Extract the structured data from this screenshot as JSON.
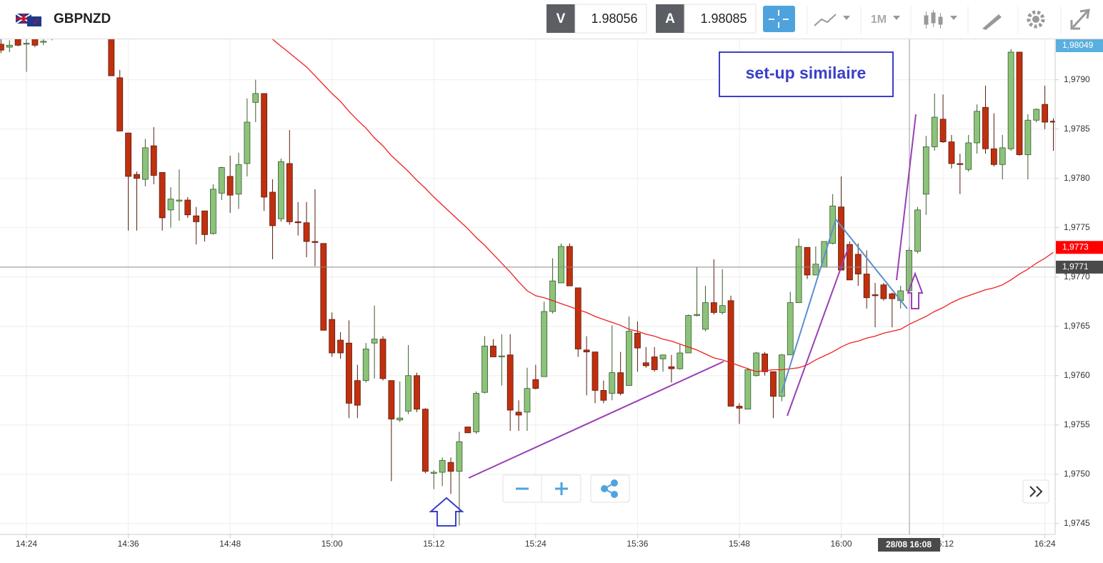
{
  "toolbar": {
    "symbol": "GBPNZD",
    "bid_label": "V",
    "bid": "1.98056",
    "ask_label": "A",
    "ask": "1.98085",
    "timeframe": "1M"
  },
  "chart_data": {
    "type": "candlestick",
    "categories": [
      null,
      null,
      null,
      "14:24",
      null,
      null,
      null,
      null,
      null,
      null,
      null,
      null,
      null,
      null,
      null,
      "14:36",
      null,
      null,
      null,
      null,
      null,
      null,
      null,
      null,
      null,
      null,
      null,
      "14:48",
      null,
      null,
      null,
      null,
      null,
      null,
      null,
      null,
      null,
      null,
      null,
      "15:00",
      null,
      null,
      null,
      null,
      null,
      null,
      null,
      null,
      null,
      null,
      null,
      "15:12",
      null,
      null,
      null,
      null,
      null,
      null,
      null,
      null,
      null,
      null,
      null,
      "15:24",
      null,
      null,
      null,
      null,
      null,
      null,
      null,
      null,
      null,
      null,
      null,
      "15:36",
      null,
      null,
      null,
      null,
      null,
      null,
      null,
      null,
      null,
      null,
      null,
      "15:48",
      null,
      null,
      null,
      null,
      null,
      null,
      null,
      null,
      null,
      null,
      null,
      "16:00",
      null,
      null,
      null,
      null,
      null,
      null,
      null,
      null,
      null,
      null,
      null,
      "16:12",
      null,
      null,
      null,
      null,
      null,
      null,
      null,
      null,
      null,
      null,
      null,
      "16:24",
      null
    ],
    "open": [
      1.97936,
      1.97933,
      1.97941,
      1.97936,
      1.97942,
      1.97938,
      1.97945,
      1.9795,
      1.97958,
      1.9796,
      1.97955,
      1.97957,
      1.9795,
      1.97948,
      1.97902,
      1.97846,
      1.97804,
      1.97799,
      1.97833,
      1.97806,
      1.97768,
      1.97777,
      1.97778,
      1.97762,
      1.97767,
      1.97744,
      1.97785,
      1.97802,
      1.97784,
      1.97815,
      1.97877,
      1.97886,
      1.97786,
      1.97759,
      1.97815,
      1.97756,
      1.97755,
      1.97736,
      1.97734,
      1.97657,
      1.97636,
      1.97633,
      1.97595,
      1.97595,
      1.97633,
      1.97637,
      1.97595,
      1.97555,
      1.97564,
      1.976,
      1.97566,
      1.97501,
      1.97502,
      1.97512,
      1.97503,
      1.97548,
      1.97543,
      1.97583,
      1.9763,
      1.97619,
      1.97621,
      1.97563,
      1.97563,
      1.97596,
      1.97599,
      1.97665,
      1.97694,
      1.97731,
      1.97689,
      1.97626,
      1.97624,
      1.97585,
      1.97582,
      1.97603,
      1.9759,
      1.97643,
      1.97613,
      1.97619,
      1.97617,
      1.97609,
      1.97607,
      1.97623,
      1.97661,
      1.97647,
      1.97674,
      1.97664,
      1.97676,
      1.97569,
      1.97566,
      1.976,
      1.97622,
      1.97604,
      1.97579,
      1.97621,
      1.97674,
      1.9773,
      1.97702,
      1.9771,
      1.97734,
      1.97771,
      1.97733,
      1.97723,
      1.97703,
      1.97682,
      1.97692,
      1.97683,
      1.97676,
      1.97686,
      1.97726,
      1.97784,
      1.97832,
      1.9786,
      1.97837,
      1.97815,
      1.97809,
      1.97836,
      1.97872,
      1.9783,
      1.97814,
      1.9783,
      1.97928,
      1.97824,
      1.97859,
      1.97875,
      1.97858
    ],
    "high": [
      1.97941,
      1.9794,
      1.97942,
      1.97941,
      1.97944,
      1.97941,
      1.97955,
      1.97962,
      1.97968,
      1.97966,
      1.97962,
      1.9796,
      1.97956,
      1.97952,
      1.9791,
      1.97846,
      1.97807,
      1.9784,
      1.97852,
      1.97806,
      1.97791,
      1.97809,
      1.97781,
      1.97771,
      1.97767,
      1.97794,
      1.97812,
      1.97823,
      1.97826,
      1.97881,
      1.979,
      1.97886,
      1.97799,
      1.9782,
      1.97849,
      1.97776,
      1.97776,
      1.97789,
      1.97734,
      1.97664,
      1.97644,
      1.97656,
      1.97611,
      1.97633,
      1.97671,
      1.9764,
      1.97595,
      1.97594,
      1.97631,
      1.97603,
      1.97567,
      1.97504,
      1.97517,
      1.97517,
      1.97543,
      1.97548,
      1.97584,
      1.9764,
      1.97637,
      1.97642,
      1.97642,
      1.97575,
      1.97608,
      1.97611,
      1.97675,
      1.97719,
      1.97734,
      1.97734,
      1.97689,
      1.9764,
      1.97624,
      1.97595,
      1.97651,
      1.97624,
      1.9766,
      1.97655,
      1.97629,
      1.97629,
      1.97621,
      1.97621,
      1.97632,
      1.97662,
      1.9771,
      1.97691,
      1.97718,
      1.97708,
      1.97681,
      1.97572,
      1.97608,
      1.97624,
      1.97624,
      1.97604,
      1.97622,
      1.97685,
      1.97739,
      1.9773,
      1.97731,
      1.97736,
      1.97784,
      1.97802,
      1.97736,
      1.97734,
      1.97727,
      1.97694,
      1.97694,
      1.97684,
      1.97691,
      1.9773,
      1.97771,
      1.97843,
      1.97886,
      1.97885,
      1.97844,
      1.97825,
      1.97844,
      1.97875,
      1.97894,
      1.97866,
      1.97844,
      1.97931,
      1.97928,
      1.97865,
      1.97871,
      1.97894,
      1.97861
    ],
    "low": [
      1.97927,
      1.97928,
      1.97934,
      1.97908,
      1.97933,
      1.97935,
      1.9794,
      1.97946,
      1.97952,
      1.9795,
      1.97948,
      1.97945,
      1.97942,
      1.97904,
      1.97848,
      1.97747,
      1.97747,
      1.97792,
      1.97794,
      1.97747,
      1.9775,
      1.97757,
      1.9776,
      1.97733,
      1.97736,
      1.97743,
      1.97778,
      1.97765,
      1.97769,
      1.97802,
      1.97857,
      1.97767,
      1.97718,
      1.97756,
      1.97753,
      1.97742,
      1.9772,
      1.97711,
      1.97646,
      1.97619,
      1.97617,
      1.97557,
      1.97557,
      1.97593,
      1.97597,
      1.97595,
      1.97493,
      1.97553,
      1.97561,
      1.97563,
      1.97501,
      1.97485,
      1.97488,
      1.9748,
      1.97448,
      1.97542,
      1.97541,
      1.97582,
      1.97619,
      1.9759,
      1.97544,
      1.97544,
      1.97544,
      1.97586,
      1.97599,
      1.97663,
      1.97694,
      1.97691,
      1.97619,
      1.9758,
      1.97572,
      1.97572,
      1.97575,
      1.9758,
      1.9759,
      1.97604,
      1.97608,
      1.97604,
      1.97604,
      1.97593,
      1.97606,
      1.97623,
      1.9766,
      1.97645,
      1.97662,
      1.97662,
      1.97569,
      1.97551,
      1.97566,
      1.97599,
      1.976,
      1.97557,
      1.97574,
      1.97621,
      1.97674,
      1.97698,
      1.97702,
      1.9771,
      1.97733,
      1.97707,
      1.97697,
      1.97691,
      1.97668,
      1.97649,
      1.97676,
      1.97649,
      1.97668,
      1.97685,
      1.97724,
      1.97763,
      1.97828,
      1.97836,
      1.9781,
      1.97784,
      1.97807,
      1.97825,
      1.97825,
      1.97812,
      1.97799,
      1.97828,
      1.97823,
      1.97799,
      1.97857,
      1.9785,
      1.97828
    ],
    "close": [
      1.9793,
      1.97935,
      1.97935,
      1.97937,
      1.97935,
      1.97939,
      1.9795,
      1.97958,
      1.9796,
      1.97955,
      1.97957,
      1.9795,
      1.97948,
      1.97904,
      1.97848,
      1.97802,
      1.978,
      1.97831,
      1.97803,
      1.9776,
      1.97779,
      1.97778,
      1.97763,
      1.97756,
      1.97743,
      1.97789,
      1.97811,
      1.97783,
      1.97814,
      1.97857,
      1.97886,
      1.97781,
      1.97752,
      1.97817,
      1.97756,
      1.97755,
      1.97736,
      1.97735,
      1.97646,
      1.97623,
      1.97623,
      1.97572,
      1.9757,
      1.97627,
      1.97637,
      1.97597,
      1.97556,
      1.97557,
      1.976,
      1.97566,
      1.97503,
      1.97502,
      1.97514,
      1.97503,
      1.97533,
      1.97542,
      1.97582,
      1.9763,
      1.97619,
      1.9762,
      1.97565,
      1.9756,
      1.97587,
      1.97587,
      1.97665,
      1.97696,
      1.97731,
      1.97691,
      1.97627,
      1.97624,
      1.97585,
      1.97575,
      1.97603,
      1.97582,
      1.97645,
      1.97628,
      1.9761,
      1.97606,
      1.97621,
      1.97607,
      1.97623,
      1.97661,
      1.97662,
      1.97674,
      1.97664,
      1.97671,
      1.97569,
      1.97567,
      1.97606,
      1.97623,
      1.97604,
      1.97579,
      1.97621,
      1.97674,
      1.97731,
      1.97702,
      1.97713,
      1.97736,
      1.97772,
      1.97707,
      1.97697,
      1.97703,
      1.97679,
      1.97681,
      1.97678,
      1.97678,
      1.97686,
      1.97727,
      1.97768,
      1.97832,
      1.97862,
      1.97837,
      1.97815,
      1.97814,
      1.97836,
      1.97868,
      1.9783,
      1.97814,
      1.97831,
      1.97928,
      1.97824,
      1.97859,
      1.9787,
      1.97857,
      1.97857
    ],
    "up_color": "#8cc37a",
    "down_color": "#c0300f",
    "moving_average": {
      "color": "#f02020",
      "values": [
        null,
        null,
        null,
        null,
        null,
        null,
        null,
        null,
        null,
        null,
        null,
        null,
        null,
        null,
        null,
        null,
        null,
        null,
        null,
        null,
        null,
        null,
        null,
        null,
        null,
        null,
        null,
        null,
        null,
        null,
        null,
        null,
        1.97941,
        1.97934,
        1.97927,
        1.9792,
        1.97913,
        1.97904,
        1.97895,
        1.97886,
        1.97878,
        1.97868,
        1.97859,
        1.97851,
        1.97841,
        1.97833,
        1.97823,
        1.97815,
        1.97807,
        1.97798,
        1.9779,
        1.97781,
        1.97773,
        1.97765,
        1.97757,
        1.97749,
        1.9774,
        1.97732,
        1.97723,
        1.97714,
        1.97705,
        1.97695,
        1.97686,
        1.97681,
        1.97679,
        1.97676,
        1.97673,
        1.9767,
        1.97667,
        1.97664,
        1.9766,
        1.97657,
        1.97654,
        1.97651,
        1.97647,
        1.97645,
        1.97642,
        1.9764,
        1.97637,
        1.97635,
        1.97632,
        1.97629,
        1.97626,
        1.97622,
        1.97618,
        1.97616,
        1.97613,
        1.9761,
        1.97607,
        1.97604,
        1.97605,
        1.97606,
        1.97606,
        1.97607,
        1.97608,
        1.97611,
        1.97616,
        1.9762,
        1.97624,
        1.97629,
        1.97633,
        1.97635,
        1.97638,
        1.9764,
        1.97643,
        1.97645,
        1.97647,
        1.97652,
        1.97656,
        1.9766,
        1.97665,
        1.97669,
        1.97674,
        1.97678,
        1.97681,
        1.97684,
        1.97687,
        1.97689,
        1.97692,
        1.97697,
        1.97703,
        1.97708,
        1.97714,
        1.97719,
        1.97725
      ]
    },
    "ylim": [
      1.97439,
      1.97941
    ],
    "yticks": [
      {
        "value": 1.9745,
        "label": "1,9745"
      },
      {
        "value": 1.975,
        "label": "1,9750"
      },
      {
        "value": 1.9755,
        "label": "1,9755"
      },
      {
        "value": 1.976,
        "label": "1,9760"
      },
      {
        "value": 1.9765,
        "label": "1,9765"
      },
      {
        "value": 1.977,
        "label": "1,9770"
      },
      {
        "value": 1.9775,
        "label": "1,9775"
      },
      {
        "value": 1.978,
        "label": "1,9780"
      },
      {
        "value": 1.9785,
        "label": "1,9785"
      },
      {
        "value": 1.979,
        "label": "1,9790"
      }
    ],
    "grid": true,
    "price_markers": [
      {
        "value": 1.98049,
        "label": "1,98049",
        "color": "#5aafde"
      },
      {
        "value": 1.9773,
        "label": "1,9773",
        "color": "#ff0000"
      }
    ],
    "crosshair": {
      "value": 1.9771,
      "label": "1,9771",
      "time_label": "28/08 16:08"
    },
    "annotation": "set-up similaire"
  }
}
